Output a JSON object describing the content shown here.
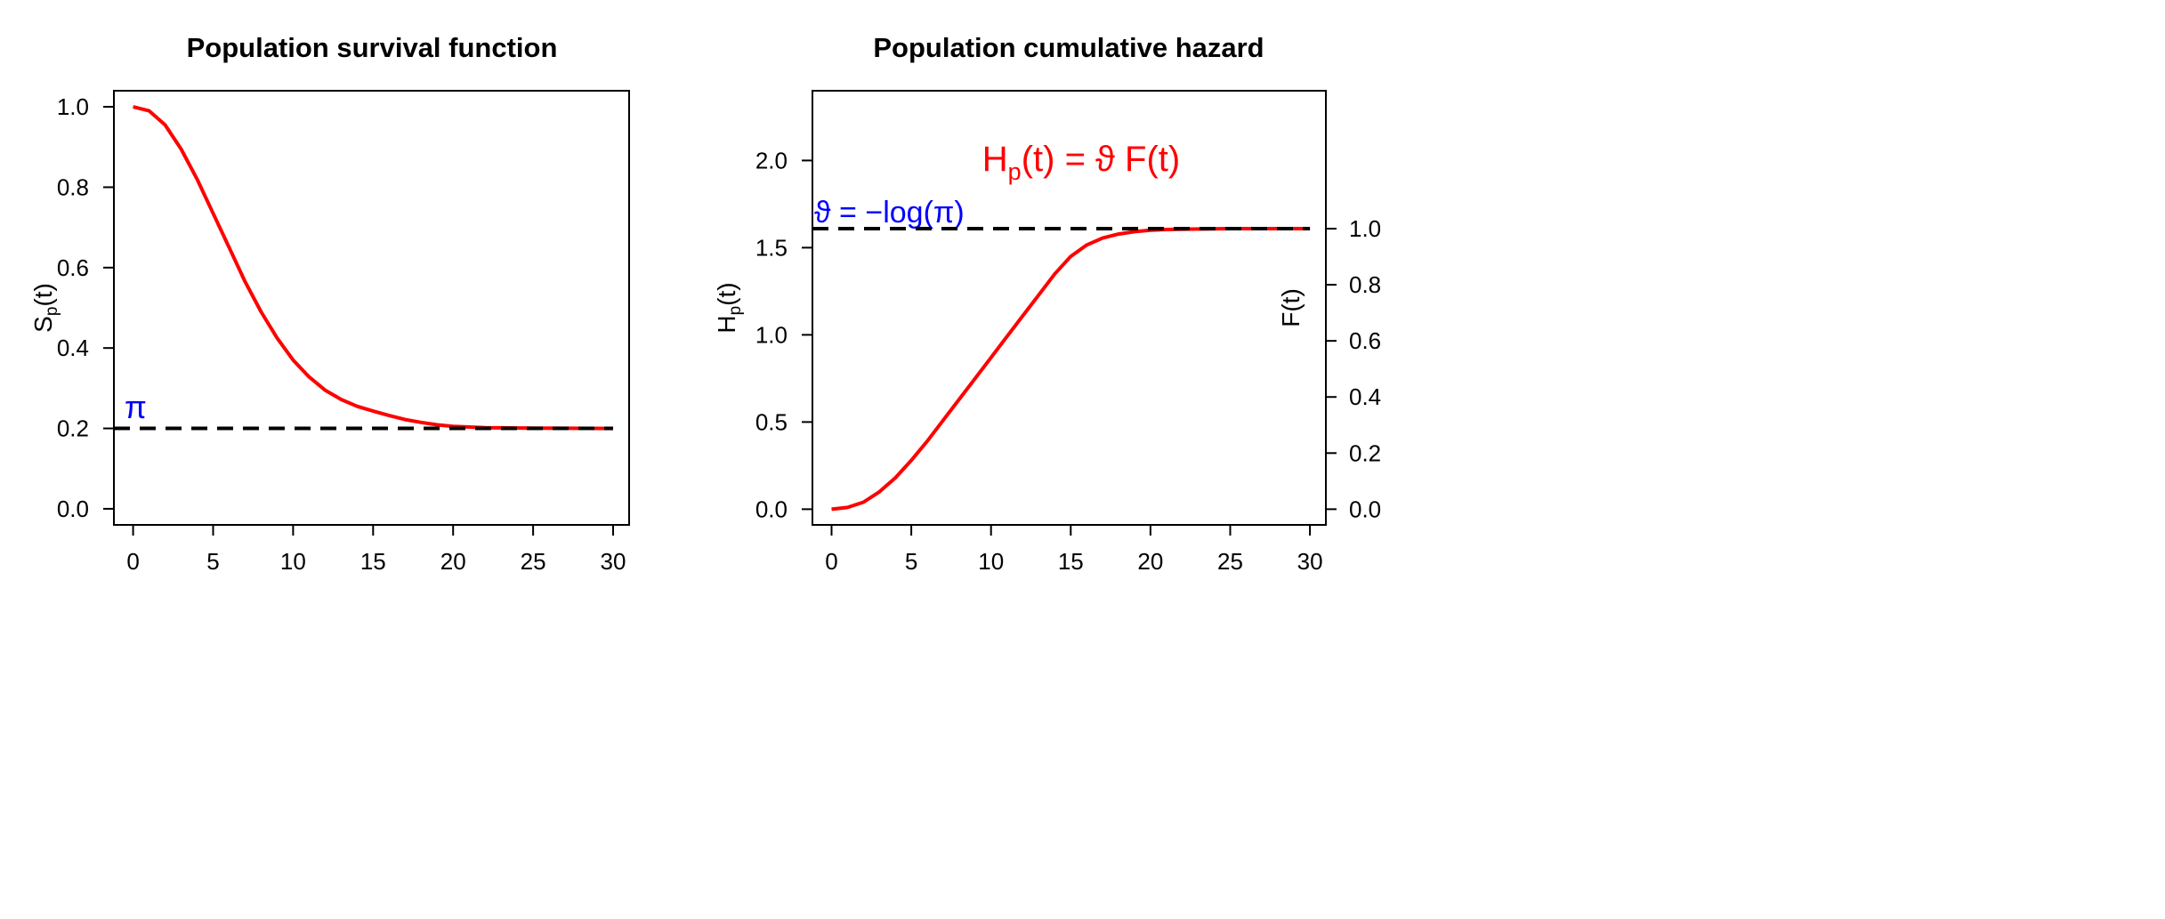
{
  "chart_data": [
    {
      "type": "line",
      "title": "Population survival function",
      "xlabel": "",
      "ylabel": {
        "base": "S",
        "sub": "p",
        "arg": "(t)"
      },
      "xlim": [
        -1.2,
        31
      ],
      "ylim": [
        -0.04,
        1.04
      ],
      "xticks": [
        0,
        5,
        10,
        15,
        20,
        25,
        30
      ],
      "yticks": [
        "0.0",
        "0.2",
        "0.4",
        "0.6",
        "0.8",
        "1.0"
      ],
      "grid": false,
      "line_color": "#ff0000",
      "series": [
        {
          "x": [
            0,
            1,
            2,
            3,
            4,
            5,
            6,
            7,
            8,
            9,
            10,
            11,
            12,
            13,
            14,
            15,
            16,
            17,
            18,
            19,
            20,
            22,
            25,
            30
          ],
          "y": [
            1.0,
            0.99,
            0.955,
            0.895,
            0.82,
            0.735,
            0.65,
            0.565,
            0.49,
            0.425,
            0.37,
            0.328,
            0.295,
            0.272,
            0.255,
            0.243,
            0.232,
            0.222,
            0.215,
            0.209,
            0.205,
            0.202,
            0.2005,
            0.2
          ]
        }
      ],
      "reference_line": {
        "y": 0.2,
        "style": "dashed",
        "color": "#000000",
        "label": "π",
        "label_color": "#0000ff"
      }
    },
    {
      "type": "line",
      "title": "Population cumulative hazard",
      "xlabel": "",
      "ylabel": {
        "base": "H",
        "sub": "p",
        "arg": "(t)"
      },
      "ylabel_right": "F(t)",
      "xlim": [
        -1.2,
        31
      ],
      "ylim": [
        -0.09,
        2.4
      ],
      "xticks": [
        0,
        5,
        10,
        15,
        20,
        25,
        30
      ],
      "yticks": [
        "0.0",
        "0.5",
        "1.0",
        "1.5",
        "2.0"
      ],
      "yticks_right": [
        "0.0",
        "0.2",
        "0.4",
        "0.6",
        "0.8",
        "1.0"
      ],
      "grid": false,
      "line_color": "#ff0000",
      "series": [
        {
          "x": [
            0,
            1,
            2,
            3,
            4,
            5,
            6,
            7,
            8,
            9,
            10,
            11,
            12,
            13,
            14,
            15,
            16,
            17,
            18,
            19,
            20,
            21,
            22,
            25,
            30
          ],
          "y": [
            0,
            0.01,
            0.04,
            0.1,
            0.18,
            0.28,
            0.39,
            0.51,
            0.63,
            0.75,
            0.87,
            0.99,
            1.11,
            1.23,
            1.35,
            1.45,
            1.515,
            1.555,
            1.578,
            1.592,
            1.6,
            1.604,
            1.606,
            1.609,
            1.609
          ]
        }
      ],
      "reference_line": {
        "y": 1.609,
        "style": "dashed",
        "color": "#000000",
        "label": "ϑ = −log(π)",
        "label_color": "#0000ff"
      },
      "annotation": {
        "base": "H",
        "sub": "p",
        "rest": "(t) = ϑ F(t)",
        "color": "#ff0000"
      }
    }
  ]
}
